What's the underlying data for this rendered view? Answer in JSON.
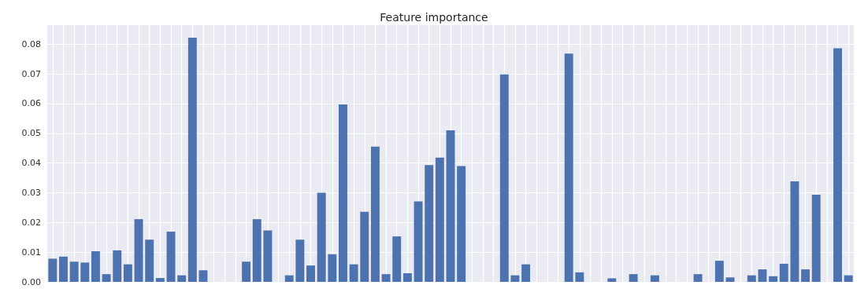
{
  "chart_data": {
    "type": "bar",
    "title": "Feature importance",
    "color": "#4c72b0",
    "grid": true,
    "categories": [
      null,
      null,
      null,
      null,
      null,
      null,
      null,
      null,
      null,
      null,
      null,
      null,
      null,
      null,
      null,
      null,
      null,
      null,
      null,
      null,
      null,
      null,
      null,
      null,
      null,
      null,
      null,
      null,
      null,
      null,
      null,
      null,
      null,
      null,
      null,
      null,
      null,
      null,
      null,
      null,
      null,
      null,
      null,
      null,
      null,
      null,
      null,
      null,
      null,
      null,
      null,
      null,
      null,
      null,
      null,
      null,
      null,
      null,
      null,
      null,
      null,
      null,
      null,
      null,
      null,
      null,
      null,
      null,
      null,
      null,
      null,
      null,
      null,
      null,
      null
    ],
    "values": [
      0.0078,
      0.0085,
      0.0068,
      0.0065,
      0.0103,
      0.0026,
      0.0106,
      0.0059,
      0.0211,
      0.0142,
      0.0013,
      0.0169,
      0.0022,
      0.0822,
      0.0039,
      0,
      0,
      0,
      0.0068,
      0.0211,
      0.0173,
      0,
      0.0022,
      0.0142,
      0.0055,
      0.03,
      0.0093,
      0.0597,
      0.0059,
      0.0236,
      0.0455,
      0.0026,
      0.0153,
      0.0029,
      0.0271,
      0.0393,
      0.0418,
      0.051,
      0.039,
      0,
      0,
      0,
      0.0698,
      0.0022,
      0.0059,
      0,
      0,
      0,
      0.0768,
      0.0032,
      0,
      0,
      0.0012,
      0,
      0.0026,
      0,
      0.0022,
      0,
      0,
      0,
      0.0026,
      0,
      0.0071,
      0.0015,
      0,
      0.0022,
      0.0042,
      0.0019,
      0.0061,
      0.0338,
      0.0042,
      0.0293,
      0,
      0.0786,
      0.0022
    ],
    "ylim": [
      0,
      0.0864
    ],
    "yticks": [
      {
        "value": 0,
        "label": "0.00"
      },
      {
        "value": 0.01,
        "label": "0.01"
      },
      {
        "value": 0.02,
        "label": "0.02"
      },
      {
        "value": 0.03,
        "label": "0.03"
      },
      {
        "value": 0.04,
        "label": "0.04"
      },
      {
        "value": 0.05,
        "label": "0.05"
      },
      {
        "value": 0.06,
        "label": "0.06"
      },
      {
        "value": 0.07,
        "label": "0.07"
      },
      {
        "value": 0.08,
        "label": "0.08"
      }
    ]
  }
}
